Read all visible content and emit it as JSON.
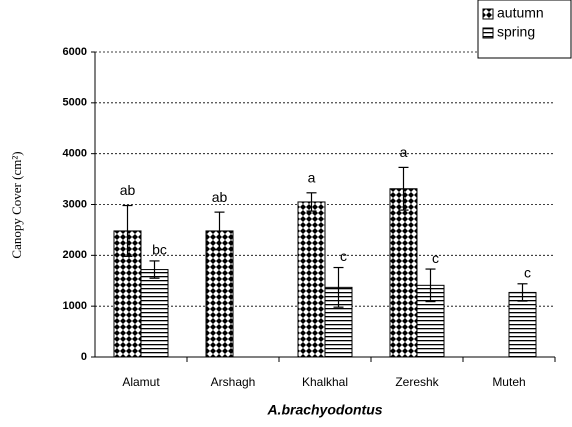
{
  "chart_data": {
    "type": "bar",
    "y_label": "Canopy Cover (cm²)",
    "x_label": "A.brachyodontus",
    "categories": [
      "Alamut",
      "Arshagh",
      "Khalkhal",
      "Zereshk",
      "Muteh"
    ],
    "series": [
      {
        "name": "autumn",
        "color": "#000000",
        "pattern": "checker",
        "values": [
          2480,
          2480,
          3050,
          3310,
          null
        ],
        "errors": [
          500,
          370,
          180,
          420,
          null
        ],
        "letters": [
          "ab",
          "ab",
          "a",
          "a",
          null
        ]
      },
      {
        "name": "spring",
        "color": "#000000",
        "pattern": "hlines",
        "values": [
          1720,
          null,
          1370,
          1410,
          1270
        ],
        "errors": [
          170,
          null,
          390,
          320,
          170
        ],
        "letters": [
          "bc",
          null,
          "c",
          "c",
          "c"
        ]
      }
    ],
    "ylim": [
      0,
      6000
    ],
    "yticks": [
      0,
      1000,
      2000,
      3000,
      4000,
      5000,
      6000
    ],
    "grid": true,
    "legend": "top-right"
  }
}
